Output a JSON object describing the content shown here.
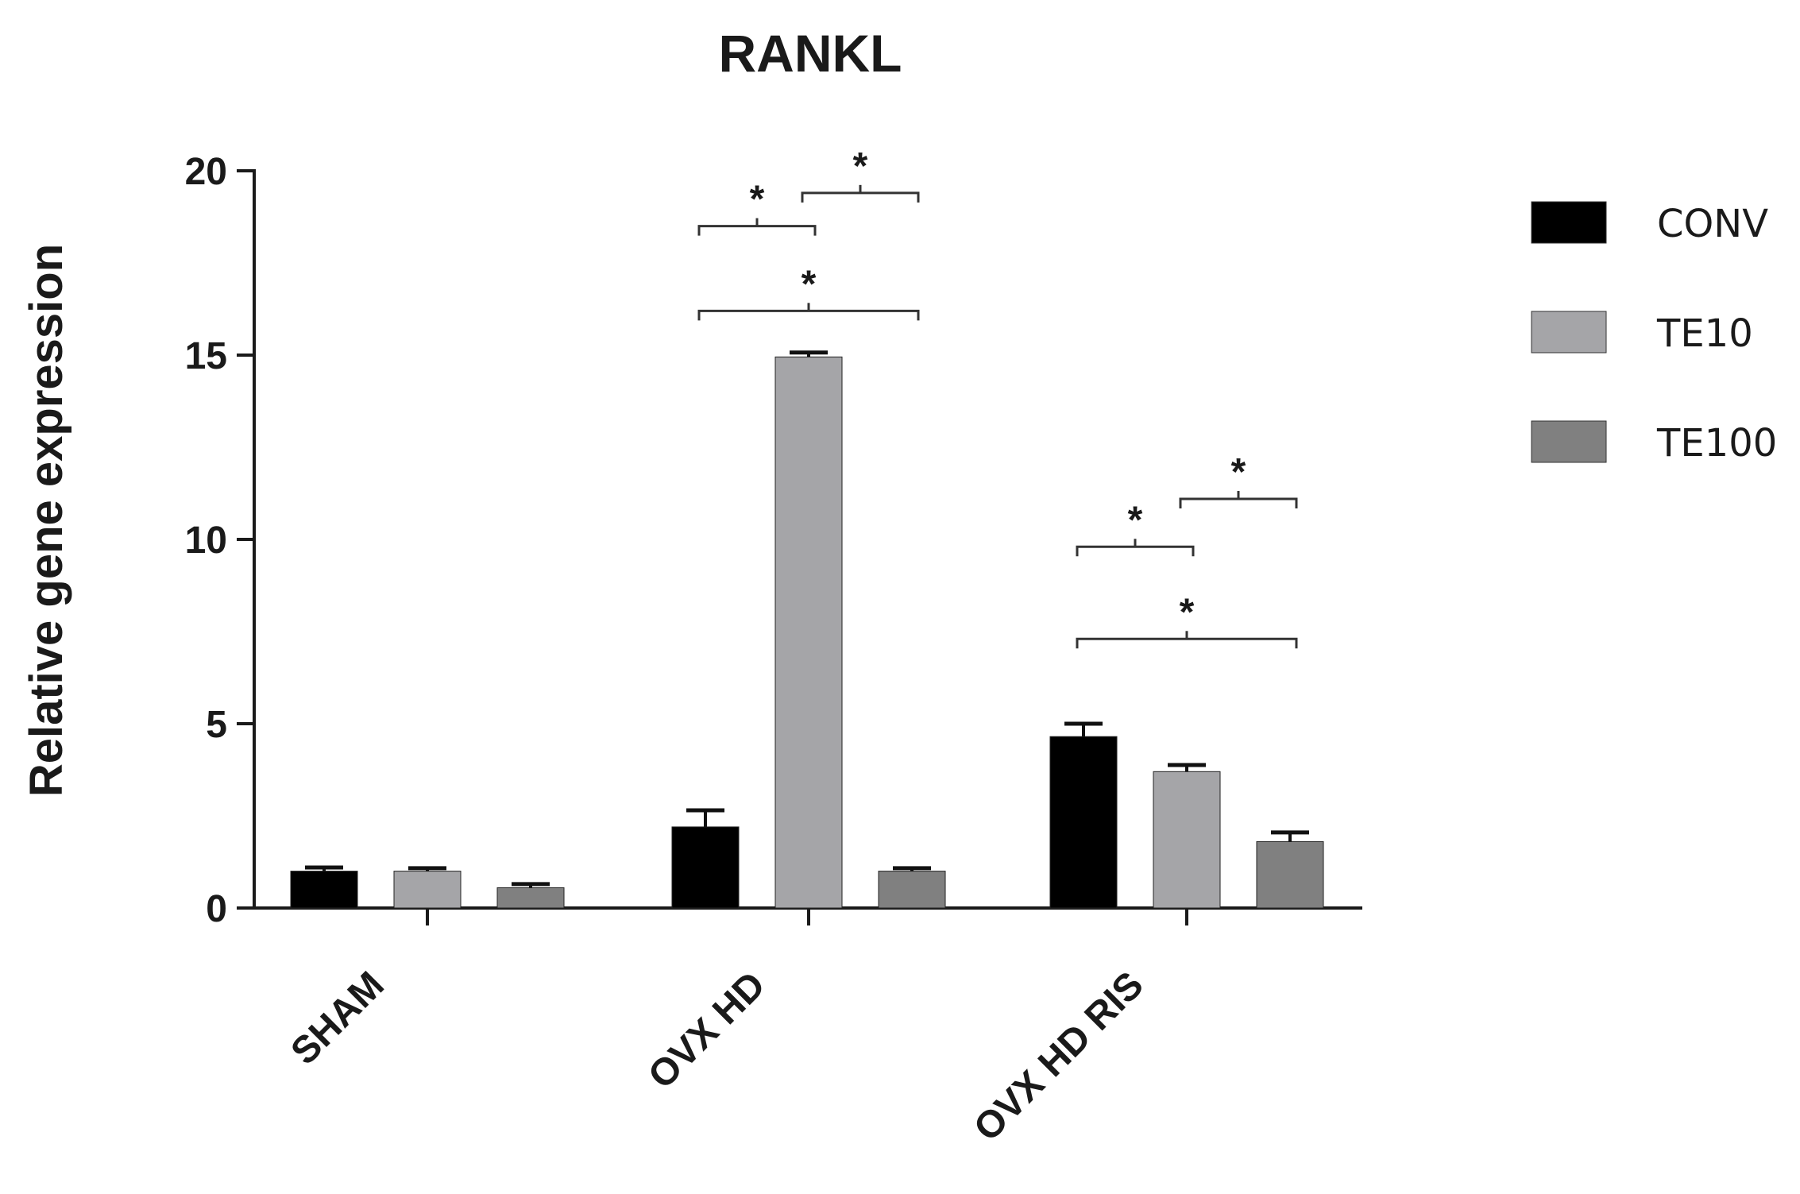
{
  "chart_data": {
    "type": "bar",
    "title": "RANKL",
    "ylabel": "Relative gene expression",
    "xlabel": "",
    "ylim": [
      0,
      20
    ],
    "yticks": [
      0,
      5,
      10,
      15,
      20
    ],
    "categories": [
      "SHAM",
      "OVX HD",
      "OVX HD RIS"
    ],
    "series": [
      {
        "name": "CONV",
        "color": "#000000",
        "values": [
          1.0,
          2.2,
          4.65
        ],
        "errors": [
          0.1,
          0.45,
          0.35
        ]
      },
      {
        "name": "TE10",
        "color": "#a5a5a8",
        "values": [
          1.0,
          14.95,
          3.7
        ],
        "errors": [
          0.08,
          0.12,
          0.18
        ]
      },
      {
        "name": "TE100",
        "color": "#808080",
        "values": [
          0.55,
          1.0,
          1.8
        ],
        "errors": [
          0.1,
          0.08,
          0.25
        ]
      }
    ],
    "legend_position": "right",
    "grid": false,
    "significance": [
      {
        "category": 1,
        "from": 0,
        "to": 1,
        "y": 18.5,
        "label": "*"
      },
      {
        "category": 1,
        "from": 1,
        "to": 2,
        "y": 19.4,
        "label": "*"
      },
      {
        "category": 1,
        "from": 0,
        "to": 2,
        "y": 16.2,
        "label": "*"
      },
      {
        "category": 2,
        "from": 0,
        "to": 1,
        "y": 9.8,
        "label": "*"
      },
      {
        "category": 2,
        "from": 1,
        "to": 2,
        "y": 11.1,
        "label": "*"
      },
      {
        "category": 2,
        "from": 0,
        "to": 2,
        "y": 7.3,
        "label": "*"
      }
    ]
  }
}
